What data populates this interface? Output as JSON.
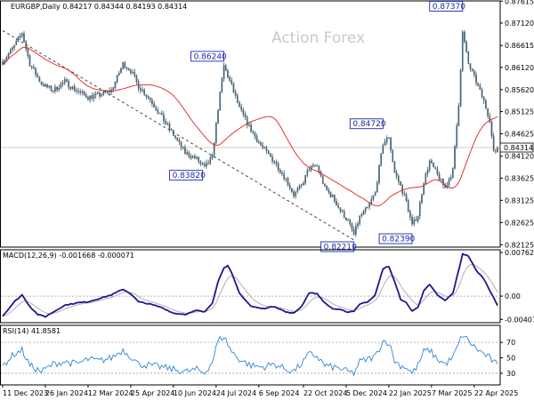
{
  "header": {
    "title": "EURGBP,Daily  0.84217 0.84344 0.84193 0.84314",
    "watermark": "Action Forex"
  },
  "chart_data": {
    "type": "candlestick",
    "symbol": "EURGBP",
    "timeframe": "Daily",
    "ohlc": {
      "open": 0.84217,
      "high": 0.84344,
      "low": 0.84193,
      "close": 0.84314
    },
    "current_price_label": "0.84314",
    "x_tick_labels": [
      "11 Dec 2023",
      "26 Jan 2024",
      "12 Mar 2024",
      "25 Apr 2024",
      "10 Jun 2024",
      "24 Jul 2024",
      "6 Sep 2024",
      "22 Oct 2024",
      "5 Dec 2024",
      "22 Jan 2025",
      "7 Mar 2025",
      "22 Apr 2025"
    ],
    "price_axis": {
      "ylim": [
        0.8207,
        0.8762
      ],
      "tick_labels": [
        "0.87615",
        "0.87120",
        "0.86615",
        "0.86120",
        "0.85620",
        "0.85125",
        "0.84625",
        "0.84120",
        "0.83625",
        "0.83125",
        "0.82625",
        "0.82125"
      ]
    },
    "annotations": [
      {
        "text": "0.87370",
        "x_index": 237,
        "price": 0.8737
      },
      {
        "text": "0.86240",
        "x_index": 114,
        "price": 0.8624
      },
      {
        "text": "0.84720",
        "x_index": 196,
        "price": 0.8472
      },
      {
        "text": "0.83820",
        "x_index": 103,
        "price": 0.8382
      },
      {
        "text": "0.82390",
        "x_index": 211,
        "price": 0.8239
      },
      {
        "text": "0.82210",
        "x_index": 181,
        "price": 0.8221
      }
    ],
    "trendline": {
      "style": "dashed",
      "from": {
        "x_index": 0,
        "price": 0.8695
      },
      "to": {
        "x_index": 181,
        "price": 0.8223
      }
    },
    "price_anchors": [
      [
        0,
        0.8625
      ],
      [
        6,
        0.866
      ],
      [
        10,
        0.869
      ],
      [
        14,
        0.862
      ],
      [
        20,
        0.8575
      ],
      [
        26,
        0.856
      ],
      [
        32,
        0.858
      ],
      [
        38,
        0.856
      ],
      [
        44,
        0.8545
      ],
      [
        50,
        0.855
      ],
      [
        56,
        0.856
      ],
      [
        62,
        0.862
      ],
      [
        66,
        0.8605
      ],
      [
        70,
        0.857
      ],
      [
        76,
        0.854
      ],
      [
        82,
        0.85
      ],
      [
        88,
        0.846
      ],
      [
        94,
        0.842
      ],
      [
        100,
        0.8405
      ],
      [
        104,
        0.8385
      ],
      [
        108,
        0.841
      ],
      [
        111,
        0.852
      ],
      [
        114,
        0.8615
      ],
      [
        118,
        0.857
      ],
      [
        122,
        0.852
      ],
      [
        128,
        0.847
      ],
      [
        134,
        0.843
      ],
      [
        140,
        0.84
      ],
      [
        146,
        0.836
      ],
      [
        150,
        0.8325
      ],
      [
        154,
        0.8345
      ],
      [
        158,
        0.8385
      ],
      [
        162,
        0.839
      ],
      [
        166,
        0.834
      ],
      [
        170,
        0.832
      ],
      [
        174,
        0.829
      ],
      [
        178,
        0.8265
      ],
      [
        181,
        0.8235
      ],
      [
        184,
        0.8275
      ],
      [
        188,
        0.8295
      ],
      [
        192,
        0.833
      ],
      [
        196,
        0.844
      ],
      [
        199,
        0.8455
      ],
      [
        202,
        0.8375
      ],
      [
        205,
        0.8345
      ],
      [
        208,
        0.831
      ],
      [
        211,
        0.8255
      ],
      [
        214,
        0.828
      ],
      [
        217,
        0.8355
      ],
      [
        220,
        0.84
      ],
      [
        224,
        0.837
      ],
      [
        228,
        0.834
      ],
      [
        232,
        0.838
      ],
      [
        235,
        0.853
      ],
      [
        237,
        0.869
      ],
      [
        240,
        0.862
      ],
      [
        244,
        0.858
      ],
      [
        248,
        0.8535
      ],
      [
        251,
        0.8495
      ],
      [
        253,
        0.842
      ],
      [
        255,
        0.8431
      ]
    ],
    "moving_average": {
      "color": "#e02020",
      "period": 55
    },
    "indicators": [
      {
        "name": "MACD(12,26,9)",
        "label": "MACD(12,26,9) -0.001668 -0.000071",
        "values": {
          "macd": -0.001668,
          "signal": -7.1e-05
        },
        "ylim": [
          -0.00465,
          0.0081
        ],
        "tick_labels": [
          "0.007623",
          "0.00",
          "-0.004073"
        ],
        "tick_values": [
          0.007623,
          0,
          -0.004073
        ],
        "main_color": "#1a1a8c",
        "signal_color": "#b0b0b0",
        "anchors": [
          [
            0,
            -0.0035
          ],
          [
            6,
            -0.001
          ],
          [
            10,
            0.0002
          ],
          [
            14,
            -0.0018
          ],
          [
            18,
            -0.0032
          ],
          [
            22,
            -0.0036
          ],
          [
            26,
            -0.0028
          ],
          [
            32,
            -0.0016
          ],
          [
            38,
            -0.0012
          ],
          [
            44,
            -0.001
          ],
          [
            50,
            -0.0004
          ],
          [
            56,
            0.0002
          ],
          [
            62,
            0.0012
          ],
          [
            66,
            0.0004
          ],
          [
            70,
            -0.001
          ],
          [
            76,
            -0.0014
          ],
          [
            82,
            -0.002
          ],
          [
            88,
            -0.003
          ],
          [
            94,
            -0.0032
          ],
          [
            100,
            -0.0025
          ],
          [
            104,
            -0.0028
          ],
          [
            108,
            -0.0012
          ],
          [
            111,
            0.0025
          ],
          [
            114,
            0.005
          ],
          [
            116,
            0.0053
          ],
          [
            118,
            0.004
          ],
          [
            122,
            0.0005
          ],
          [
            128,
            -0.0018
          ],
          [
            134,
            -0.0022
          ],
          [
            140,
            -0.0018
          ],
          [
            146,
            -0.0028
          ],
          [
            150,
            -0.003
          ],
          [
            154,
            -0.0018
          ],
          [
            158,
            0.0006
          ],
          [
            162,
            0.0004
          ],
          [
            166,
            -0.0012
          ],
          [
            170,
            -0.0022
          ],
          [
            174,
            -0.0024
          ],
          [
            178,
            -0.0028
          ],
          [
            181,
            -0.0026
          ],
          [
            184,
            -0.0014
          ],
          [
            188,
            -0.001
          ],
          [
            192,
            0.0002
          ],
          [
            196,
            0.0048
          ],
          [
            199,
            0.0052
          ],
          [
            202,
            0.0025
          ],
          [
            205,
            -0.0005
          ],
          [
            208,
            -0.0012
          ],
          [
            211,
            -0.0026
          ],
          [
            214,
            -0.002
          ],
          [
            217,
            0.001
          ],
          [
            220,
            0.002
          ],
          [
            224,
            0.0002
          ],
          [
            228,
            -0.0008
          ],
          [
            232,
            0.0005
          ],
          [
            235,
            0.0045
          ],
          [
            237,
            0.0074
          ],
          [
            240,
            0.007
          ],
          [
            244,
            0.0045
          ],
          [
            248,
            0.003
          ],
          [
            251,
            0.001
          ],
          [
            253,
            -0.0002
          ],
          [
            255,
            -0.0017
          ]
        ]
      },
      {
        "name": "RSI(14)",
        "label": "RSI(14) 41.8581",
        "value": 41.8581,
        "ylim": [
          15,
          92
        ],
        "tick_labels": [
          "70",
          "50",
          "30"
        ],
        "tick_values": [
          70,
          50,
          30
        ],
        "levels": [
          70,
          30
        ],
        "color": "#2f86d8",
        "anchors": [
          [
            0,
            40
          ],
          [
            6,
            55
          ],
          [
            10,
            60
          ],
          [
            14,
            40
          ],
          [
            20,
            32
          ],
          [
            26,
            42
          ],
          [
            32,
            45
          ],
          [
            38,
            42
          ],
          [
            44,
            48
          ],
          [
            50,
            46
          ],
          [
            56,
            50
          ],
          [
            62,
            60
          ],
          [
            66,
            52
          ],
          [
            70,
            42
          ],
          [
            76,
            40
          ],
          [
            82,
            38
          ],
          [
            88,
            35
          ],
          [
            94,
            32
          ],
          [
            100,
            35
          ],
          [
            104,
            30
          ],
          [
            108,
            45
          ],
          [
            111,
            72
          ],
          [
            114,
            78
          ],
          [
            118,
            58
          ],
          [
            122,
            48
          ],
          [
            128,
            40
          ],
          [
            134,
            38
          ],
          [
            140,
            42
          ],
          [
            146,
            35
          ],
          [
            150,
            33
          ],
          [
            154,
            42
          ],
          [
            158,
            55
          ],
          [
            162,
            52
          ],
          [
            166,
            40
          ],
          [
            170,
            38
          ],
          [
            174,
            36
          ],
          [
            178,
            32
          ],
          [
            181,
            30
          ],
          [
            184,
            45
          ],
          [
            188,
            48
          ],
          [
            192,
            52
          ],
          [
            196,
            72
          ],
          [
            199,
            70
          ],
          [
            202,
            46
          ],
          [
            205,
            40
          ],
          [
            208,
            38
          ],
          [
            211,
            30
          ],
          [
            214,
            40
          ],
          [
            217,
            58
          ],
          [
            220,
            60
          ],
          [
            224,
            48
          ],
          [
            228,
            42
          ],
          [
            232,
            50
          ],
          [
            235,
            68
          ],
          [
            237,
            80
          ],
          [
            240,
            72
          ],
          [
            244,
            62
          ],
          [
            248,
            55
          ],
          [
            251,
            50
          ],
          [
            253,
            44
          ],
          [
            255,
            41.86
          ]
        ]
      }
    ]
  }
}
